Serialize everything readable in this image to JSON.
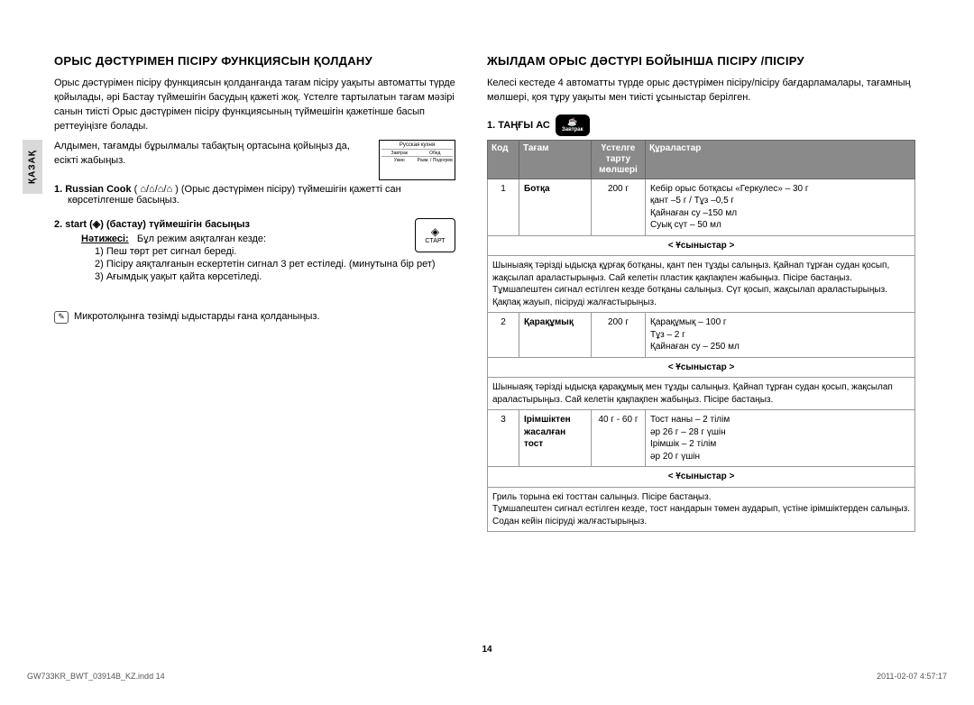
{
  "sideTab": "ҚАЗАҚ",
  "left": {
    "heading": "ОРЫС ДƏСТҮРІМЕН ПІСІРУ ФУНКЦИЯСЫН ҚОЛДАНУ",
    "para1": "Орыс дəстүрімен пісіру функциясын қолданғанда тағам пісіру уақыты автоматты түрде қойылады, əрі Бастау түймешігін басудың қажеті жоқ.  Үстелге тартылатын тағам мəзірі санын тиісті Орыс дəстүрімен пісіру функциясының түймешігін қажетінше басып реттеуіңізге болады.",
    "sub1": "Алдымен, тағамды бұрылмалы табақтың ортасына қойыңыз да, есікті жабыңыз.",
    "step1_label": "1.   Russian Cook",
    "step1_text": " ( ⌂/⌂/⌂/⌂ ) (Орыс дəстүрімен пісіру) түймешігін қажетті сан көрсетілгенше басыңыз.",
    "step2": "2.   start (◈) (бастау) түймешігін басыңыз",
    "result_label": "Нəтижесі:",
    "result_intro": "Бұл режим аяқталған кезде:",
    "result_items": [
      "1)  Пеш төрт рет сигнал береді.",
      "2)  Пісіру аяқталғанын ескертетін сигнал 3 рет естіледі. (минутына бір рет)",
      "3)  Ағымдық уақыт қайта көрсетіледі."
    ],
    "note": "Микротолқынға төзімді ыдыстарды ғана қолданыңыз.",
    "inset": {
      "title": "Русская кухня",
      "row1": [
        "Завтрак",
        "Обед"
      ],
      "row2": [
        "Ужин",
        "Разм. / Подогрев"
      ]
    },
    "start_label": "СТАРТ"
  },
  "right": {
    "heading": "ЖЫЛДАМ ОРЫС ДƏСТҮРІ БОЙЫНША ПІСІРУ /ПІСІРУ",
    "para1": "Келесі кестеде 4 автоматты түрде орыс дəстүрімен пісіру/пісіру бағдарламалары, тағамның мөлшері, қоя тұру уақыты мен тиісті ұсыныстар берілген.",
    "section1": "1. ТАҢҒЫ АС",
    "badge_sub": "Завтрак",
    "headers": {
      "code": "Код",
      "food": "Тағам",
      "size": "Үстелге тарту мөлшері",
      "ing": "Құраластар"
    },
    "reclabel": "< Ұсыныстар >",
    "rows": [
      {
        "code": "1",
        "food": "Ботқа",
        "size": "200 г",
        "ing": "Кебір орыс ботқасы «Геркулес» – 30 г\nқант –5 г / Тұз –0,5 г\nҚайнаған су –150 мл\nСуық сүт – 50 мл",
        "tip": "Шыныаяқ тəрізді ыдысқа құрғақ ботқаны, қант пен тұзды салыңыз. Қайнап тұрған судан қосып, жақсылап араластырыңыз.  Сай келетін пластик қақпақпен жабыңыз.  Пісіре бастаңыз. Тұмшапештен сигнал естілген кезде ботқаны салыңыз.  Сүт қосып, жақсылап араластырыңыз.  Қақпақ жауып, пісіруді жалғастырыңыз."
      },
      {
        "code": "2",
        "food": "Қарақұмық",
        "size": "200 г",
        "ing": "Қарақұмық – 100 г\nТұз – 2 г\nҚайнаған су – 250 мл",
        "tip": "Шыныаяқ тəрізді ыдысқа қарақұмық мен тұзды салыңыз.  Қайнап тұрған судан қосып, жақсылап араластырыңыз.  Сай келетін қақпақпен жабыңыз.  Пісіре бастаңыз."
      },
      {
        "code": "3",
        "food": "Ірімшіктен жасалған тост",
        "size": "40 г - 60 г",
        "ing": "Тост наны – 2 тілім\nəр 26 г – 28 г үшін\nІрімшік – 2 тілім\nəр 20 г үшін",
        "tip": "Гриль торына екі тосттан салыңыз.  Пісіре бастаңыз.\nТұмшапештен сигнал естілген кезде, тост нандарын төмен аударып, үстіне ірімшіктерден салыңыз.   Содан кейін пісіруді жалғастырыңыз."
      }
    ]
  },
  "pageNum": "14",
  "footer": {
    "file": "GW733KR_BWT_03914B_KZ.indd   14",
    "date": "2011-02-07   4:57:17"
  }
}
